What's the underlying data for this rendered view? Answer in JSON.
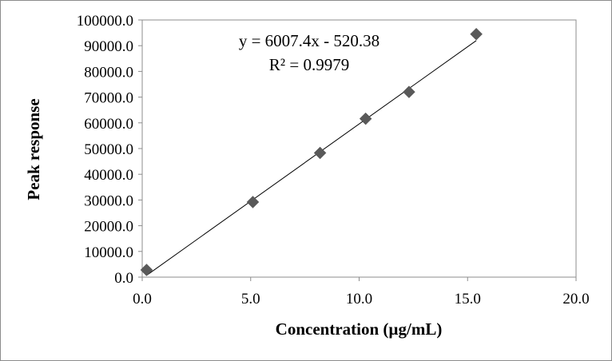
{
  "chart_data": {
    "type": "scatter",
    "xlabel": "Concentration (µg/mL)",
    "ylabel": "Peak response",
    "xlim": [
      0,
      20
    ],
    "ylim": [
      0,
      100000
    ],
    "x_ticks": [
      0,
      5,
      10,
      15,
      20
    ],
    "y_ticks": [
      0,
      10000,
      20000,
      30000,
      40000,
      50000,
      60000,
      70000,
      80000,
      90000,
      100000
    ],
    "x_tick_labels": [
      "0.0",
      "5.0",
      "10.0",
      "15.0",
      "20.0"
    ],
    "y_tick_labels": [
      "0.0",
      "10000.0",
      "20000.0",
      "30000.0",
      "40000.0",
      "50000.0",
      "60000.0",
      "70000.0",
      "80000.0",
      "90000.0",
      "100000.0"
    ],
    "grid": false,
    "legend": false,
    "series": [
      {
        "marker": "diamond",
        "color": "#595959",
        "points": [
          {
            "x": 0.2,
            "y": 2800
          },
          {
            "x": 5.1,
            "y": 29200
          },
          {
            "x": 8.2,
            "y": 48300
          },
          {
            "x": 10.3,
            "y": 61600
          },
          {
            "x": 12.3,
            "y": 72000
          },
          {
            "x": 15.4,
            "y": 94500
          }
        ]
      }
    ],
    "trendline": {
      "type": "linear",
      "slope": 6007.4,
      "intercept": -520.38,
      "x_range": [
        0.2,
        15.4
      ],
      "color": "#000000"
    },
    "annotations": [
      "y = 6007.4x  - 520.38",
      "R² = 0.9979"
    ]
  }
}
